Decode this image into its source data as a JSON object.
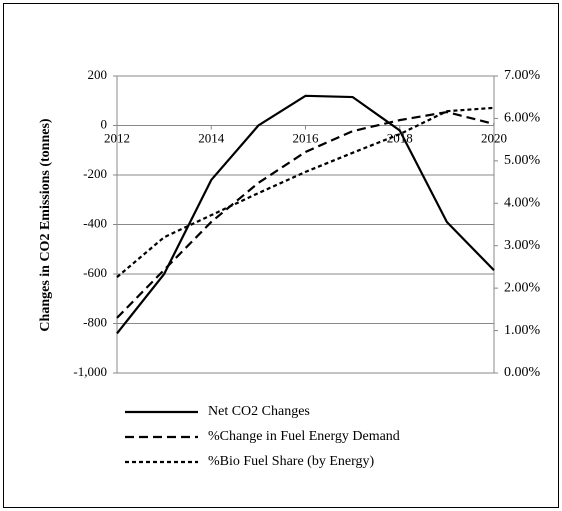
{
  "chart_data": {
    "type": "line",
    "y_label": "Changes in CO2 Emissions (tonnes)",
    "x": [
      2012,
      2013,
      2014,
      2015,
      2016,
      2017,
      2018,
      2019,
      2020
    ],
    "xlim": [
      2012,
      2020
    ],
    "xticks": [
      2012,
      2014,
      2016,
      2018,
      2020
    ],
    "ylim": [
      -1000,
      200
    ],
    "yticks": [
      {
        "value": -1000,
        "label": "-1,000"
      },
      -800,
      -600,
      -400,
      -200,
      0,
      200
    ],
    "y2lim": [
      0,
      7
    ],
    "y2ticks": [
      {
        "value": 0,
        "label": "0.00%"
      },
      {
        "value": 1,
        "label": "1.00%"
      },
      {
        "value": 2,
        "label": "2.00%"
      },
      {
        "value": 3,
        "label": "3.00%"
      },
      {
        "value": 4,
        "label": "4.00%"
      },
      {
        "value": 5,
        "label": "5.00%"
      },
      {
        "value": 6,
        "label": "6.00%"
      },
      {
        "value": 7,
        "label": "7.00%"
      }
    ],
    "grid": true,
    "legend": "bottom",
    "series": [
      {
        "name": "Net CO2 Changes",
        "color": "#000000",
        "dash": "solid",
        "values": [
          -840,
          -600,
          -220,
          0,
          120,
          115,
          -20,
          -390,
          -585
        ]
      },
      {
        "name": "%Change in Fuel Energy Demand",
        "color": "#000000",
        "dash": "long",
        "axis": "y2",
        "values": [
          1.3,
          2.43,
          3.56,
          4.48,
          5.21,
          5.7,
          5.96,
          6.15,
          5.87
        ]
      },
      {
        "name": "%Bio Fuel Share (by Energy)",
        "color": "#000000",
        "dash": "short",
        "axis": "y2",
        "values": [
          2.26,
          3.2,
          3.72,
          4.24,
          4.74,
          5.19,
          5.63,
          6.17,
          6.25
        ]
      }
    ]
  }
}
